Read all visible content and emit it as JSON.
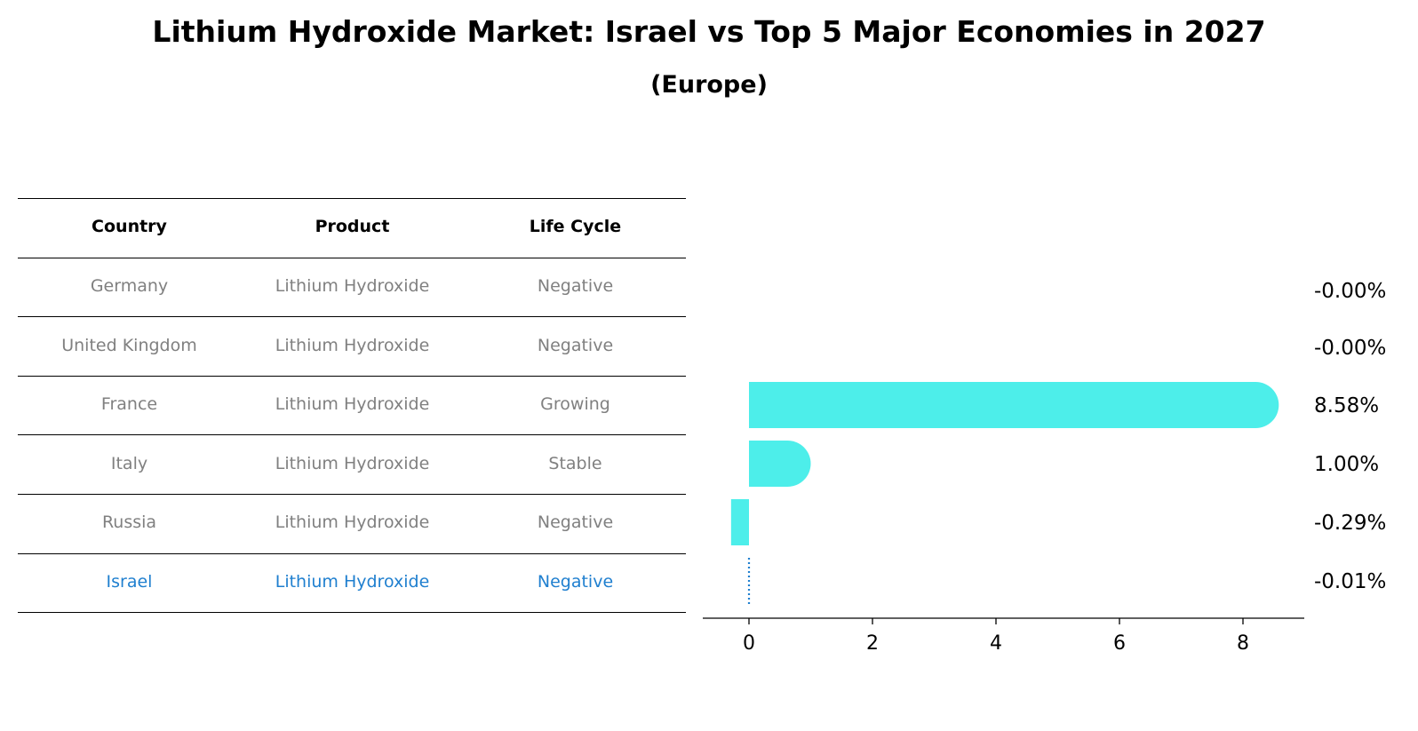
{
  "title": "Lithium Hydroxide Market: Israel vs Top 5 Major Economies in 2027",
  "subtitle": "(Europe)",
  "colors": {
    "bar": "#4deeea",
    "highlight": "#1f7fcf",
    "muted": "#808080"
  },
  "table": {
    "headers": [
      "Country",
      "Product",
      "Life Cycle"
    ],
    "rows": [
      {
        "country": "Germany",
        "product": "Lithium Hydroxide",
        "life_cycle": "Negative",
        "highlight": false
      },
      {
        "country": "United Kingdom",
        "product": "Lithium Hydroxide",
        "life_cycle": "Negative",
        "highlight": false
      },
      {
        "country": "France",
        "product": "Lithium Hydroxide",
        "life_cycle": "Growing",
        "highlight": false
      },
      {
        "country": "Italy",
        "product": "Lithium Hydroxide",
        "life_cycle": "Stable",
        "highlight": false
      },
      {
        "country": "Russia",
        "product": "Lithium Hydroxide",
        "life_cycle": "Negative",
        "highlight": false
      },
      {
        "country": "Israel",
        "product": "Lithium Hydroxide",
        "life_cycle": "Negative",
        "highlight": true
      }
    ]
  },
  "chart_data": {
    "type": "bar",
    "orientation": "horizontal",
    "categories": [
      "Germany",
      "United Kingdom",
      "France",
      "Italy",
      "Russia",
      "Israel"
    ],
    "values": [
      -0.0,
      -0.0,
      8.58,
      1.0,
      -0.29,
      -0.01
    ],
    "value_labels": [
      "-0.00%",
      "-0.00%",
      "8.58%",
      "1.00%",
      "-0.29%",
      "-0.01%"
    ],
    "xlim": [
      -0.75,
      9.0
    ],
    "xticks": [
      0,
      2,
      4,
      6,
      8
    ],
    "xlabel": "",
    "ylabel": "",
    "grid": false,
    "highlight_category": "Israel"
  }
}
